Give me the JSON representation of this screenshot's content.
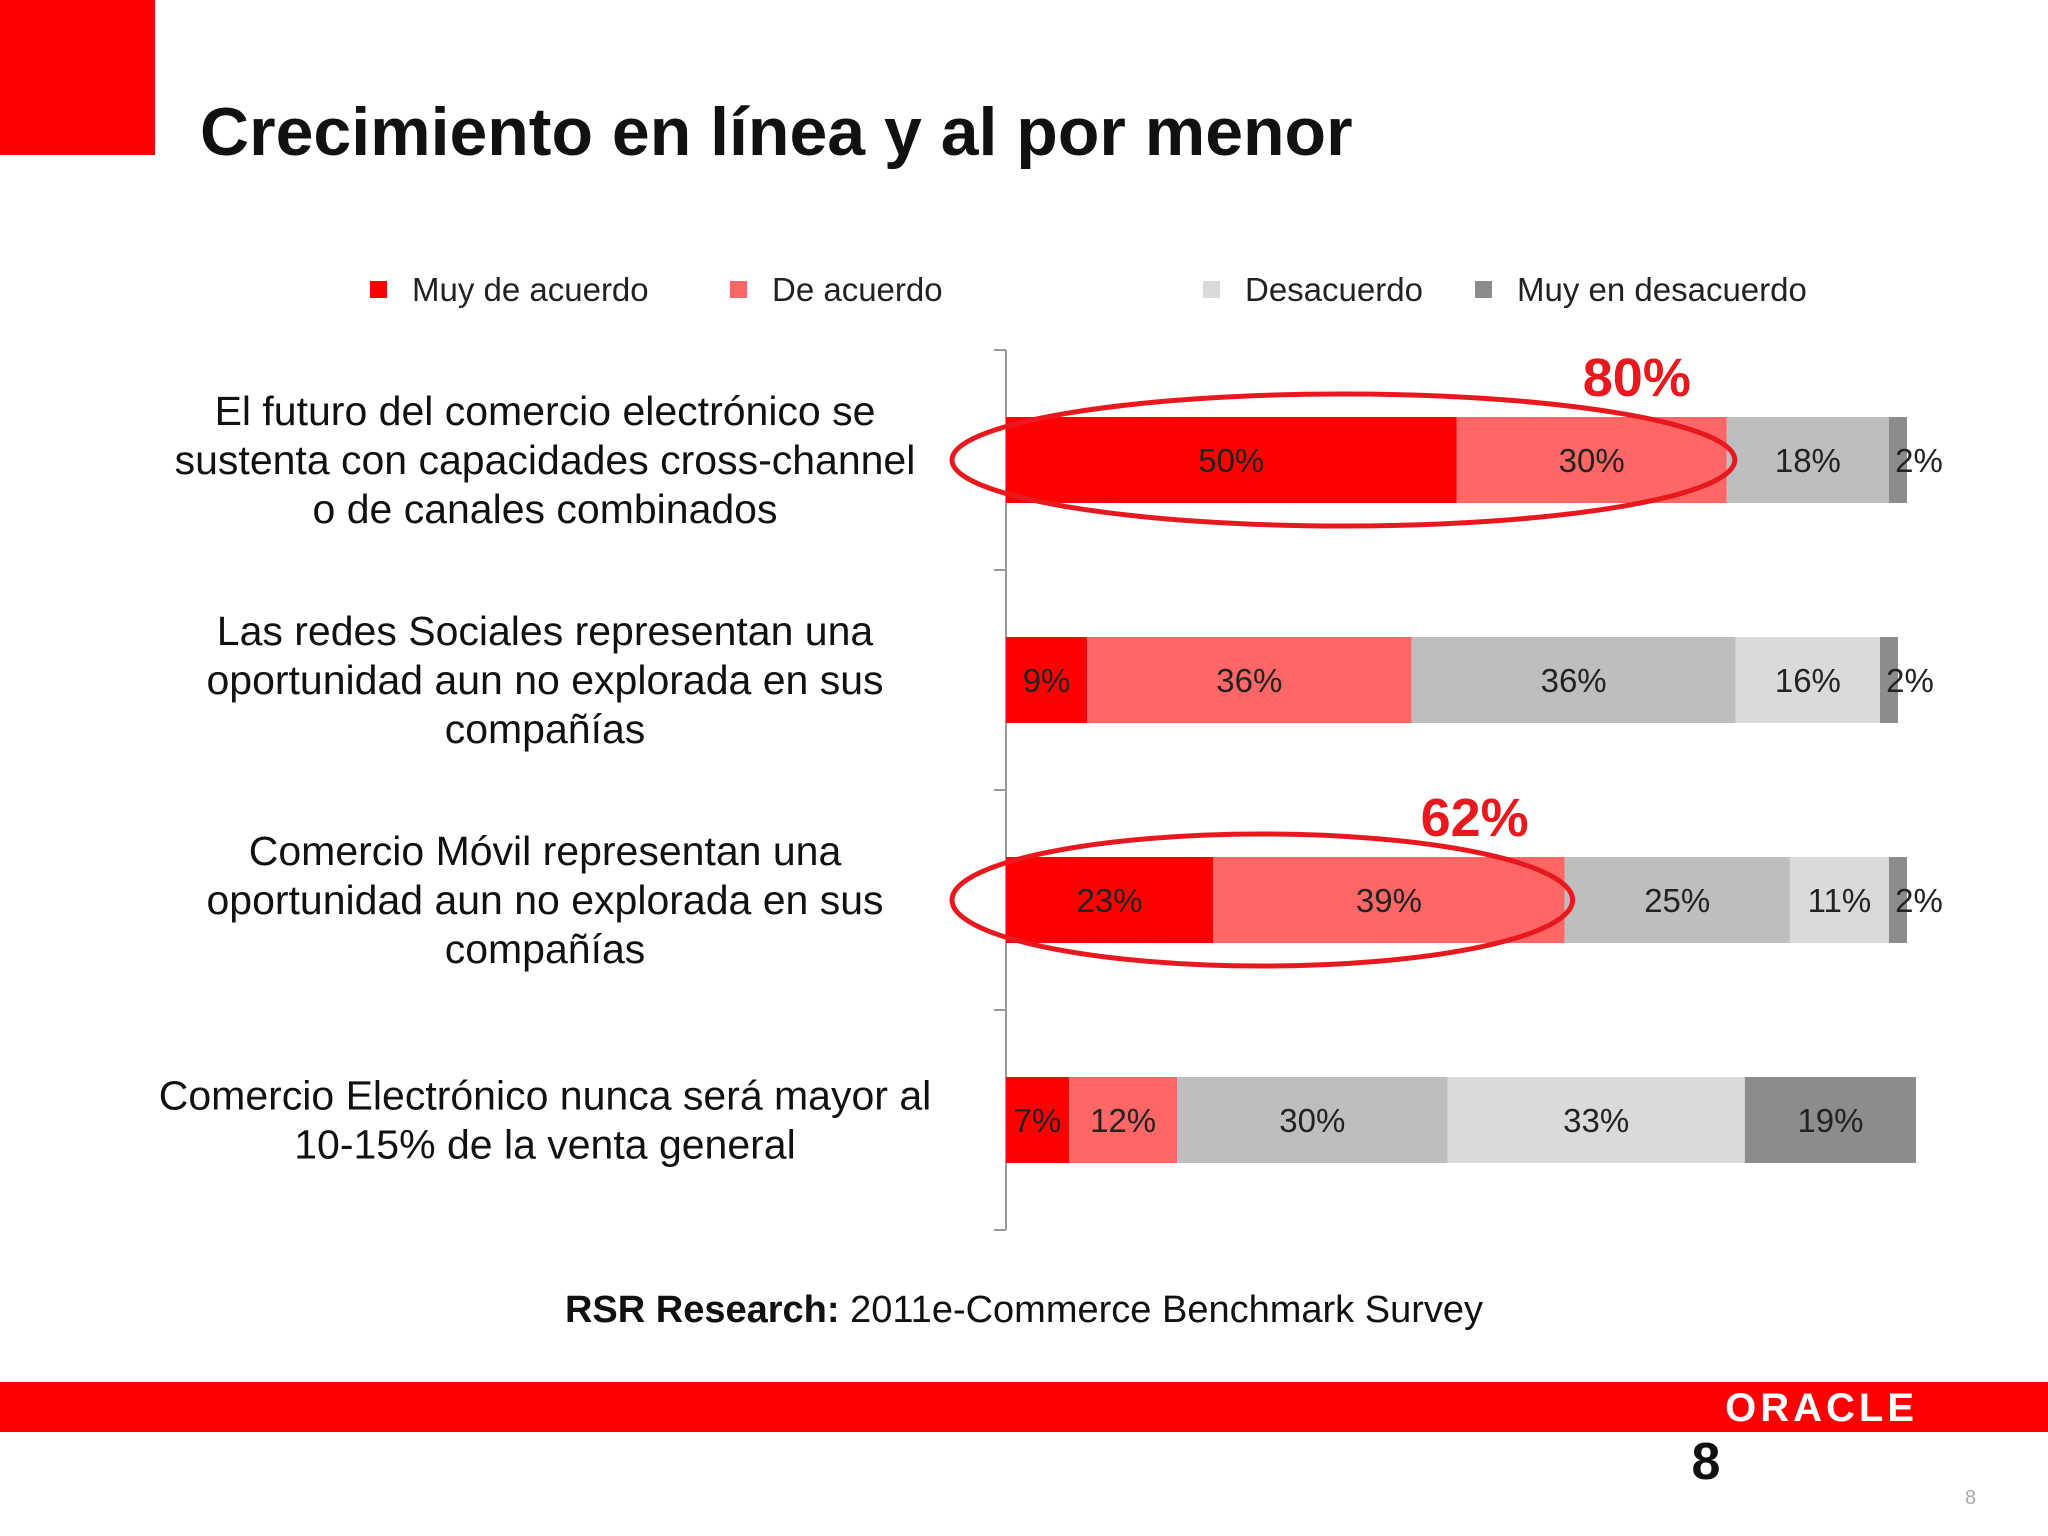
{
  "slide": {
    "title": "Crecimiento en línea y al por menor",
    "source_bold": "RSR Research:",
    "source_rest": " 2011e-Commerce Benchmark Survey",
    "logo": "ORACLE",
    "page_number": "8",
    "page_number_small": "8"
  },
  "highlights": [
    {
      "label": "80%",
      "row": 0,
      "covers_series": 2
    },
    {
      "label": "62%",
      "row": 2,
      "covers_series": 2
    }
  ],
  "chart_data": {
    "type": "bar",
    "orientation": "horizontal",
    "stacked": true,
    "categories": [
      "El futuro del comercio electrónico se sustenta con capacidades cross-channel o de canales combinados",
      "Las redes Sociales representan una oportunidad aun no explorada en sus compañías",
      "Comercio Móvil representan una oportunidad aun no explorada en sus compañías",
      "Comercio Electrónico nunca será mayor al 10-15% de la venta general"
    ],
    "category_lines": [
      [
        "El futuro del comercio electrónico se",
        "sustenta con capacidades cross-channel",
        "o de canales combinados"
      ],
      [
        "Las redes Sociales representan una",
        "oportunidad aun no explorada en sus",
        "compañías"
      ],
      [
        "Comercio Móvil representan una",
        "oportunidad aun no explorada en sus",
        "compañías"
      ],
      [
        "Comercio Electrónico nunca será mayor al",
        "10-15% de la venta general"
      ]
    ],
    "series": [
      {
        "name": "Muy de acuerdo",
        "color": "#ff0000",
        "values": [
          50,
          9,
          23,
          7
        ]
      },
      {
        "name": "De acuerdo",
        "color": "#ff6666",
        "values": [
          30,
          36,
          39,
          12
        ]
      },
      {
        "name": "",
        "color": "#bfbdc0",
        "values": [
          18,
          36,
          25,
          30
        ]
      },
      {
        "name": "Desacuerdo",
        "color": "#dad9dc",
        "values": [
          0,
          16,
          11,
          33
        ]
      },
      {
        "name": "Muy en desacuerdo",
        "color": "#8c8b8e",
        "values": [
          2,
          2,
          2,
          19
        ]
      }
    ],
    "legend": [
      {
        "name": "Muy de acuerdo",
        "color": "#ff0000"
      },
      {
        "name": "De acuerdo",
        "color": "#ff6666"
      },
      {
        "name": "Desacuerdo",
        "color": "#dad9dc"
      },
      {
        "name": "Muy en desacuerdo",
        "color": "#8c8b8e"
      }
    ],
    "legend_position": "top",
    "xlim": [
      0,
      100
    ],
    "grid": false,
    "highlight_color": "#e8191e"
  }
}
